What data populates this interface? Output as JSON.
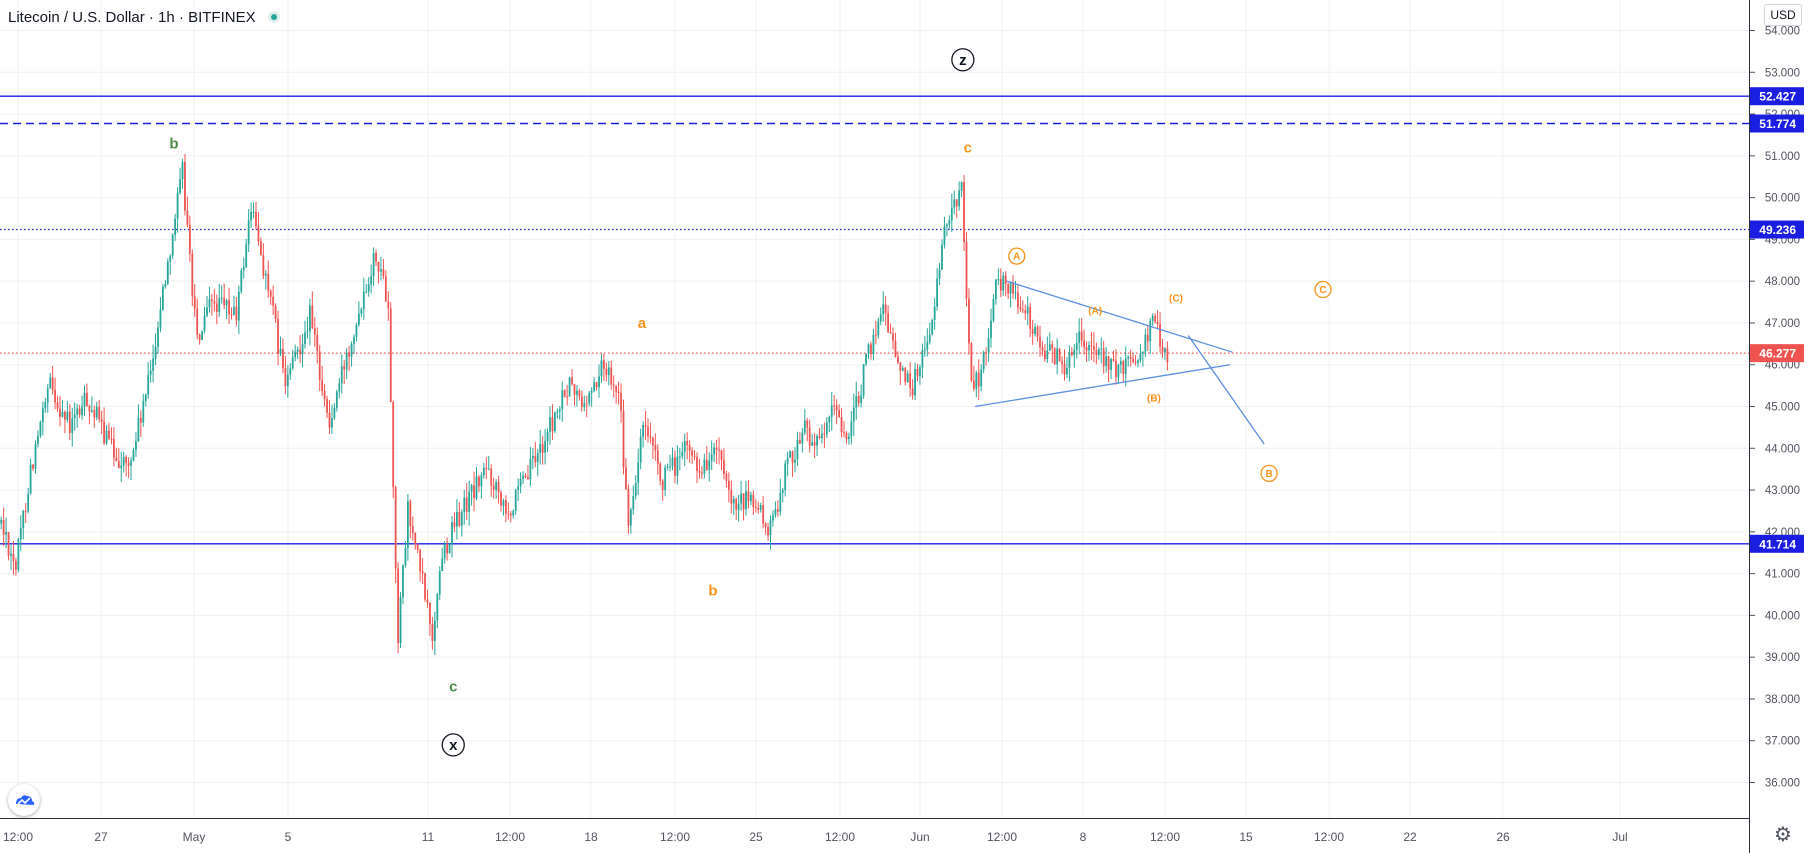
{
  "header": {
    "symbol_title": "Litecoin / U.S. Dollar · 1h · BITFINEX",
    "currency_badge": "USD"
  },
  "chart_data": {
    "type": "candlestick",
    "symbol": "Litecoin / U.S. Dollar",
    "interval": "1h",
    "exchange": "BITFINEX",
    "currency": "USD",
    "y_range": [
      35.2,
      54.3
    ],
    "y_ticks": [
      "54.000",
      "53.000",
      "52.000",
      "51.000",
      "50.000",
      "49.000",
      "48.000",
      "47.000",
      "46.000",
      "45.000",
      "44.000",
      "43.000",
      "42.000",
      "41.000",
      "40.000",
      "39.000",
      "38.000",
      "37.000",
      "36.000"
    ],
    "x_ticks": [
      "12:00",
      "27",
      "May",
      "5",
      "11",
      "12:00",
      "18",
      "12:00",
      "25",
      "12:00",
      "Jun",
      "12:00",
      "8",
      "12:00",
      "15",
      "12:00",
      "22",
      "26",
      "Jul"
    ],
    "price_path": [
      [
        0,
        42.2
      ],
      [
        6,
        41.2
      ],
      [
        12,
        43.5
      ],
      [
        20,
        45.5
      ],
      [
        28,
        44.5
      ],
      [
        35,
        45.2
      ],
      [
        45,
        44.0
      ],
      [
        52,
        43.5
      ],
      [
        60,
        45.5
      ],
      [
        68,
        48.5
      ],
      [
        74,
        50.6
      ],
      [
        80,
        46.5
      ],
      [
        86,
        47.5
      ],
      [
        96,
        47.2
      ],
      [
        102,
        49.8
      ],
      [
        110,
        47.5
      ],
      [
        116,
        45.5
      ],
      [
        126,
        47.2
      ],
      [
        134,
        44.5
      ],
      [
        140,
        46.0
      ],
      [
        148,
        47.8
      ],
      [
        153,
        48.7
      ],
      [
        158,
        47.5
      ],
      [
        160,
        43.0
      ],
      [
        162,
        39.5
      ],
      [
        166,
        42.5
      ],
      [
        172,
        40.8
      ],
      [
        176,
        39.5
      ],
      [
        180,
        41.5
      ],
      [
        188,
        42.5
      ],
      [
        198,
        43.5
      ],
      [
        208,
        42.5
      ],
      [
        216,
        43.5
      ],
      [
        224,
        44.5
      ],
      [
        232,
        45.5
      ],
      [
        238,
        45.0
      ],
      [
        246,
        46.0
      ],
      [
        252,
        45.5
      ],
      [
        256,
        42.0
      ],
      [
        262,
        44.5
      ],
      [
        270,
        43.2
      ],
      [
        280,
        44.0
      ],
      [
        286,
        43.5
      ],
      [
        292,
        44.0
      ],
      [
        298,
        42.5
      ],
      [
        306,
        42.8
      ],
      [
        314,
        42.0
      ],
      [
        320,
        43.5
      ],
      [
        328,
        44.5
      ],
      [
        334,
        44.0
      ],
      [
        340,
        45.0
      ],
      [
        346,
        44.2
      ],
      [
        352,
        45.8
      ],
      [
        360,
        47.5
      ],
      [
        366,
        46.0
      ],
      [
        372,
        45.5
      ],
      [
        380,
        47.0
      ],
      [
        386,
        49.5
      ],
      [
        392,
        50.2
      ],
      [
        396,
        45.5
      ],
      [
        400,
        45.8
      ],
      [
        406,
        47.8
      ],
      [
        410,
        48.0
      ],
      [
        416,
        47.5
      ],
      [
        424,
        46.5
      ],
      [
        434,
        46.0
      ],
      [
        440,
        46.8
      ],
      [
        448,
        46.2
      ],
      [
        456,
        45.8
      ],
      [
        464,
        46.3
      ],
      [
        470,
        47.0
      ],
      [
        476,
        46.3
      ]
    ],
    "horizontal_levels": [
      {
        "price": 52.427,
        "label": "52.427",
        "style": "solid",
        "color": "#1a1ee0"
      },
      {
        "price": 51.774,
        "label": "51.774",
        "style": "dashed",
        "color": "#1a1ee0"
      },
      {
        "price": 49.236,
        "label": "49.236",
        "style": "dotted",
        "color": "#1a1ee0"
      },
      {
        "price": 41.714,
        "label": "41.714",
        "style": "solid",
        "color": "#1a1ee0"
      },
      {
        "price": 46.277,
        "label": "46.277",
        "style": "dotted",
        "color": "#ef5350"
      }
    ],
    "wave_labels": [
      {
        "text": "z",
        "bar": 393,
        "price": 53.3,
        "color": "#131722",
        "circled": true,
        "size": "large"
      },
      {
        "text": "b",
        "bar": 71,
        "price": 51.3,
        "color": "#4c8c4a",
        "circled": false,
        "size": "large"
      },
      {
        "text": "c",
        "bar": 395,
        "price": 51.2,
        "color": "#f7931a",
        "circled": false,
        "size": "large"
      },
      {
        "text": "a",
        "bar": 262,
        "price": 47.0,
        "color": "#f7931a",
        "circled": false,
        "size": "large"
      },
      {
        "text": "b",
        "bar": 291,
        "price": 40.6,
        "color": "#f7931a",
        "circled": false,
        "size": "large"
      },
      {
        "text": "c",
        "bar": 185,
        "price": 38.3,
        "color": "#4c8c4a",
        "circled": false,
        "size": "large"
      },
      {
        "text": "x",
        "bar": 185,
        "price": 36.9,
        "color": "#131722",
        "circled": true,
        "size": "large"
      },
      {
        "text": "A",
        "bar": 415,
        "price": 48.6,
        "color": "#f7931a",
        "circled": true,
        "size": "small"
      },
      {
        "text": "(A)",
        "bar": 447,
        "price": 47.3,
        "color": "#f7931a",
        "circled": false,
        "size": "tiny"
      },
      {
        "text": "(B)",
        "bar": 471,
        "price": 45.2,
        "color": "#f7931a",
        "circled": false,
        "size": "tiny"
      },
      {
        "text": "(C)",
        "bar": 480,
        "price": 47.6,
        "color": "#f7931a",
        "circled": false,
        "size": "tiny"
      },
      {
        "text": "C",
        "bar": 540,
        "price": 47.8,
        "color": "#f7931a",
        "circled": true,
        "size": "small"
      },
      {
        "text": "B",
        "bar": 518,
        "price": 43.4,
        "color": "#f7931a",
        "circled": true,
        "size": "small"
      }
    ],
    "trend_lines": [
      {
        "from": {
          "bar": 411,
          "price": 48.0
        },
        "to": {
          "bar": 503,
          "price": 46.3
        },
        "color": "#5b8fe0"
      },
      {
        "from": {
          "bar": 398,
          "price": 45.0
        },
        "to": {
          "bar": 502,
          "price": 46.0
        },
        "color": "#5b8fe0"
      },
      {
        "from": {
          "bar": 485,
          "price": 46.7
        },
        "to": {
          "bar": 516,
          "price": 44.1
        },
        "color": "#5b8fe0"
      }
    ],
    "colors": {
      "up": "#26a69a",
      "down": "#ef5350",
      "level": "#1a1ee0",
      "grid": "#eef0f3",
      "axis_text": "#50535e"
    }
  }
}
